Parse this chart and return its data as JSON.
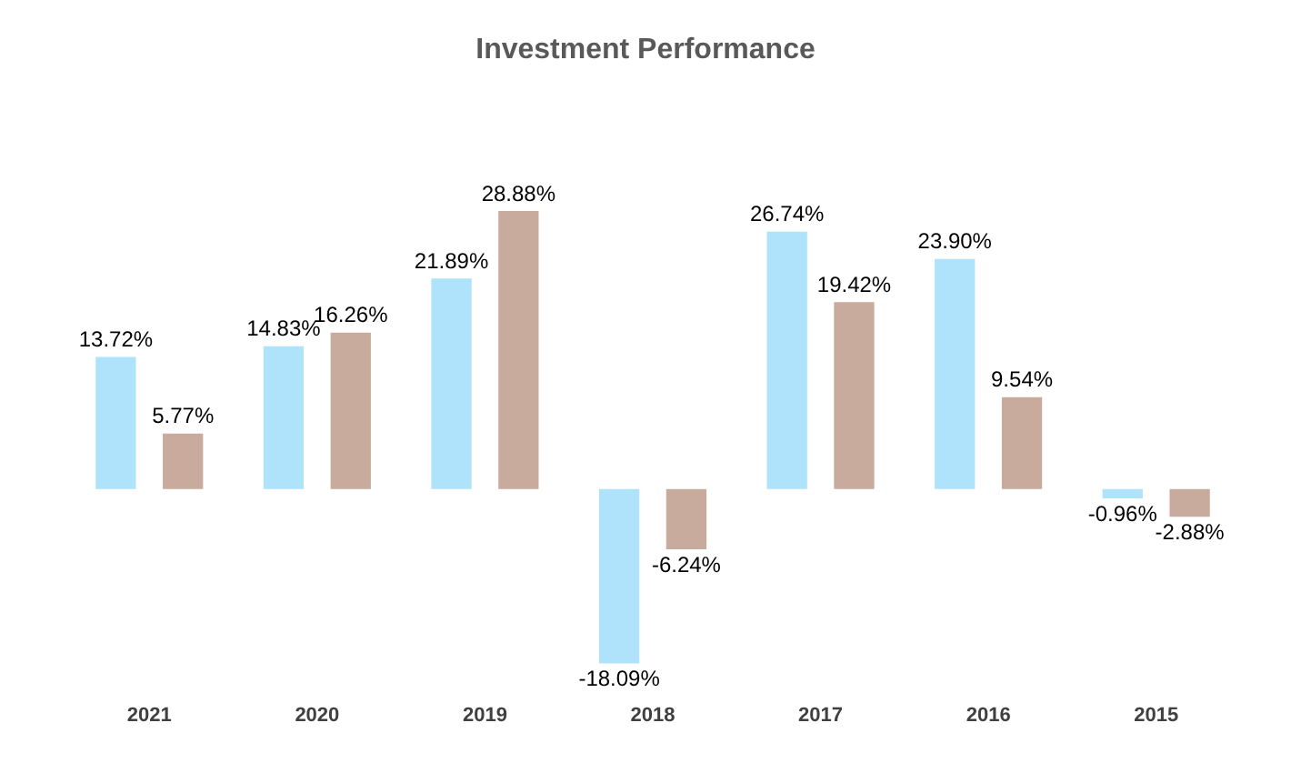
{
  "chart_data": {
    "type": "bar",
    "title": "Investment Performance",
    "categories": [
      "2021",
      "2020",
      "2019",
      "2018",
      "2017",
      "2016",
      "2015"
    ],
    "series": [
      {
        "color": "#aee3fb",
        "values": [
          13.72,
          14.83,
          21.89,
          -18.09,
          26.74,
          23.9,
          -0.96
        ],
        "value_labels": [
          "13.72%",
          "14.83%",
          "21.89%",
          "-18.09%",
          "26.74%",
          "23.90%",
          "-0.96%"
        ]
      },
      {
        "color": "#c9ab9d",
        "values": [
          5.77,
          16.26,
          28.88,
          -6.24,
          19.42,
          9.54,
          -2.88
        ],
        "value_labels": [
          "5.77%",
          "16.26%",
          "28.88%",
          "-6.24%",
          "19.42%",
          "9.54%",
          "-2.88%"
        ]
      }
    ],
    "relative": false,
    "grid": false,
    "legend": false
  }
}
